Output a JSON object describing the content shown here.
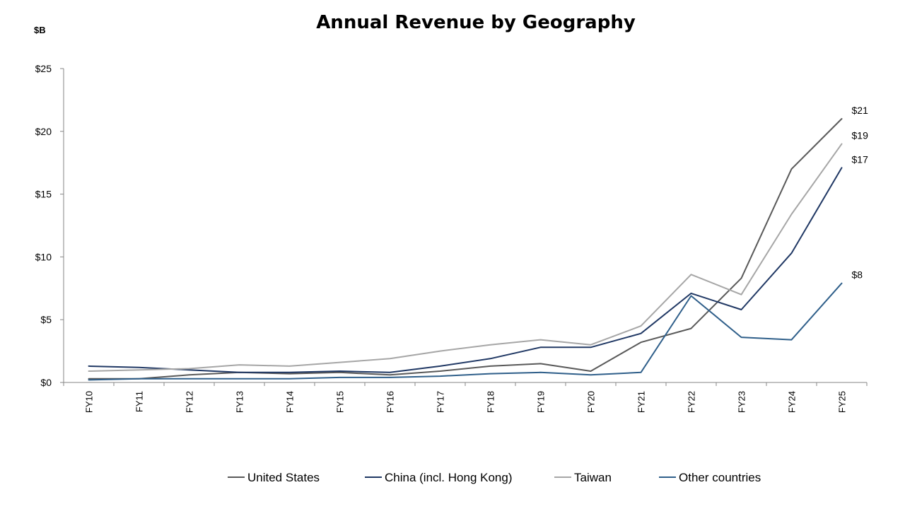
{
  "chart_data": {
    "type": "line",
    "title": "Annual Revenue by Geography",
    "unit_label": "$B",
    "xlabel": "",
    "ylabel": "",
    "categories": [
      "FY10",
      "FY11",
      "FY12",
      "FY13",
      "FY14",
      "FY15",
      "FY16",
      "FY17",
      "FY18",
      "FY19",
      "FY20",
      "FY21",
      "FY22",
      "FY23",
      "FY24",
      "FY25"
    ],
    "ylim": [
      0,
      25
    ],
    "yticks": [
      0,
      5,
      10,
      15,
      20,
      25
    ],
    "ytick_labels": [
      "$0",
      "$5",
      "$10",
      "$15",
      "$20",
      "$25"
    ],
    "grid": false,
    "legend_position": "bottom",
    "series": [
      {
        "name": "United States",
        "color": "#595959",
        "values": [
          0.3,
          0.3,
          0.6,
          0.8,
          0.7,
          0.8,
          0.6,
          0.9,
          1.3,
          1.5,
          0.9,
          3.2,
          4.3,
          8.3,
          17.0,
          21.0
        ],
        "end_label": "$21"
      },
      {
        "name": "China (incl. Hong Kong)",
        "color": "#203864",
        "values": [
          1.3,
          1.2,
          1.0,
          0.8,
          0.8,
          0.9,
          0.8,
          1.3,
          1.9,
          2.8,
          2.8,
          3.9,
          7.1,
          5.8,
          10.3,
          17.1
        ],
        "end_label": "$17"
      },
      {
        "name": "Taiwan",
        "color": "#a6a6a6",
        "values": [
          0.9,
          1.0,
          1.1,
          1.4,
          1.3,
          1.6,
          1.9,
          2.5,
          3.0,
          3.4,
          3.0,
          4.5,
          8.6,
          7.0,
          13.4,
          19.0
        ],
        "end_label": "$19"
      },
      {
        "name": "Other countries",
        "color": "#2f5f8a",
        "values": [
          0.2,
          0.3,
          0.3,
          0.3,
          0.3,
          0.4,
          0.4,
          0.5,
          0.7,
          0.8,
          0.6,
          0.8,
          6.9,
          3.6,
          3.4,
          7.9
        ],
        "end_label": "$8"
      }
    ]
  }
}
